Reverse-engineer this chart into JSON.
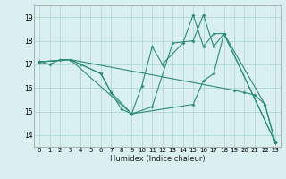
{
  "xlabel": "Humidex (Indice chaleur)",
  "bg_color": "#daf0f0",
  "grid_color": "#b0d8d8",
  "line_color": "#2e8b77",
  "xlim": [
    -0.5,
    23.5
  ],
  "ylim": [
    13.5,
    19.5
  ],
  "xticks": [
    0,
    1,
    2,
    3,
    4,
    5,
    6,
    7,
    8,
    9,
    10,
    11,
    12,
    13,
    14,
    15,
    16,
    17,
    18,
    19,
    20,
    21,
    22,
    23
  ],
  "yticks": [
    14,
    15,
    16,
    17,
    18,
    19
  ],
  "series": [
    {
      "x": [
        0,
        1,
        2,
        3,
        19,
        20,
        21,
        22,
        23
      ],
      "y": [
        17.1,
        17.0,
        17.2,
        17.2,
        15.9,
        15.8,
        15.7,
        15.3,
        13.7
      ]
    },
    {
      "x": [
        0,
        3,
        4,
        6,
        7,
        8,
        9,
        10,
        11,
        12,
        14,
        15,
        16,
        17,
        18,
        22,
        23
      ],
      "y": [
        17.1,
        17.2,
        17.0,
        16.6,
        15.8,
        15.1,
        14.9,
        16.1,
        17.75,
        17.0,
        17.9,
        19.1,
        17.75,
        18.3,
        18.3,
        15.3,
        13.7
      ]
    },
    {
      "x": [
        0,
        3,
        6,
        7,
        9,
        11,
        13,
        15,
        16,
        17,
        18,
        23
      ],
      "y": [
        17.1,
        17.2,
        16.6,
        15.8,
        14.9,
        15.2,
        17.9,
        18.0,
        19.1,
        17.75,
        18.3,
        13.7
      ]
    },
    {
      "x": [
        0,
        3,
        9,
        15,
        16,
        17,
        18,
        23
      ],
      "y": [
        17.1,
        17.2,
        14.9,
        15.3,
        16.3,
        16.6,
        18.3,
        13.7
      ]
    }
  ]
}
